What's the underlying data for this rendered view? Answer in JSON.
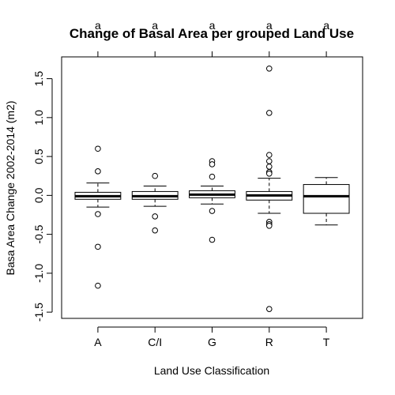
{
  "chart_data": {
    "type": "box",
    "title": "Change of Basal Area per grouped Land Use",
    "xlabel": "Land Use Classification",
    "ylabel": "Basa Area Change 2002-2014 (m2)",
    "ylim": [
      -1.58,
      1.78
    ],
    "yticks": [
      -1.5,
      -1.0,
      -0.5,
      0.0,
      0.5,
      1.0,
      1.5
    ],
    "ytick_labels": [
      "-1.5",
      "-1.0",
      "-0.5",
      "0.0",
      "0.5",
      "1.0",
      "1.5"
    ],
    "grid": false,
    "categories": [
      "A",
      "C/I",
      "G",
      "R",
      "T"
    ],
    "group_letters": [
      "a",
      "a",
      "a",
      "a",
      "a"
    ],
    "boxes": [
      {
        "category": "A",
        "whisker_low": -0.15,
        "q1": -0.05,
        "median": -0.01,
        "q3": 0.04,
        "whisker_high": 0.16,
        "outliers": [
          0.6,
          0.31,
          -0.24,
          -0.66,
          -1.16
        ]
      },
      {
        "category": "C/I",
        "whisker_low": -0.14,
        "q1": -0.05,
        "median": -0.01,
        "q3": 0.05,
        "whisker_high": 0.12,
        "outliers": [
          0.25,
          -0.27,
          -0.45
        ]
      },
      {
        "category": "G",
        "whisker_low": -0.11,
        "q1": -0.03,
        "median": 0.01,
        "q3": 0.06,
        "whisker_high": 0.12,
        "outliers": [
          0.44,
          0.4,
          0.24,
          -0.2,
          -0.57
        ]
      },
      {
        "category": "R",
        "whisker_low": -0.23,
        "q1": -0.06,
        "median": 0.0,
        "q3": 0.05,
        "whisker_high": 0.22,
        "outliers": [
          1.63,
          1.06,
          0.52,
          0.44,
          0.37,
          0.3,
          0.28,
          -0.34,
          -0.37,
          -0.39,
          -1.46
        ]
      },
      {
        "category": "T",
        "whisker_low": -0.38,
        "q1": -0.23,
        "median": -0.01,
        "q3": 0.14,
        "whisker_high": 0.23,
        "outliers": []
      }
    ]
  }
}
